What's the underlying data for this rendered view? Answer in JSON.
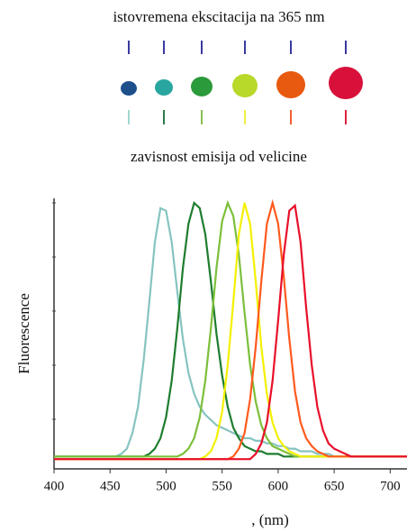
{
  "chart_data": {
    "type": "line",
    "title": "istovremena ekscitacija na 365 nm",
    "subtitle": "zavisnost emisija od velicine",
    "xlabel": ", (nm)",
    "ylabel": "Fluorescence",
    "xlim": [
      400,
      715
    ],
    "ylim": [
      0,
      100
    ],
    "xticks": [
      400,
      450,
      500,
      550,
      600,
      650,
      700
    ],
    "x": [
      400,
      405,
      410,
      415,
      420,
      425,
      430,
      435,
      440,
      445,
      450,
      455,
      460,
      465,
      470,
      475,
      480,
      485,
      490,
      495,
      500,
      505,
      510,
      515,
      520,
      525,
      530,
      535,
      540,
      545,
      550,
      555,
      560,
      565,
      570,
      575,
      580,
      585,
      590,
      595,
      600,
      605,
      610,
      615,
      620,
      625,
      630,
      635,
      640,
      645,
      650,
      655,
      660,
      665,
      670,
      675,
      680,
      685,
      690,
      695,
      700,
      705,
      710,
      715
    ],
    "series": [
      {
        "color": "#86c4c0",
        "values": [
          3,
          3,
          3,
          3,
          3,
          3,
          3,
          3,
          3,
          3,
          3,
          3,
          4,
          6,
          12,
          22,
          40,
          62,
          85,
          98,
          97,
          85,
          66,
          48,
          35,
          27,
          22,
          19,
          17,
          15,
          14,
          13,
          12,
          11,
          10,
          10,
          9,
          9,
          8,
          8,
          7,
          7,
          6,
          6,
          5,
          5,
          5,
          4,
          4,
          4,
          3,
          3,
          3,
          3,
          3,
          3,
          3,
          3,
          3,
          3,
          3,
          3,
          3,
          3
        ]
      },
      {
        "color": "#1e7d2e",
        "values": [
          3,
          3,
          3,
          3,
          3,
          3,
          3,
          3,
          3,
          3,
          3,
          3,
          3,
          3,
          3,
          3,
          3,
          4,
          6,
          10,
          18,
          32,
          52,
          75,
          92,
          100,
          98,
          88,
          70,
          50,
          34,
          22,
          14,
          10,
          7,
          6,
          5,
          5,
          4,
          4,
          4,
          3,
          3,
          3,
          3,
          3,
          3,
          3,
          3,
          3,
          3,
          3,
          3,
          3,
          3,
          3,
          3,
          3,
          3,
          3,
          3,
          3,
          3,
          3
        ]
      },
      {
        "color": "#7cbf3a",
        "values": [
          3,
          3,
          3,
          3,
          3,
          3,
          3,
          3,
          3,
          3,
          3,
          3,
          3,
          3,
          3,
          3,
          3,
          3,
          3,
          3,
          3,
          3,
          3,
          4,
          6,
          10,
          18,
          32,
          52,
          75,
          93,
          100,
          95,
          80,
          58,
          38,
          24,
          15,
          10,
          7,
          6,
          5,
          4,
          3,
          3,
          3,
          3,
          3,
          3,
          3,
          3,
          3,
          3,
          3,
          3,
          3,
          3,
          3,
          3,
          3,
          3,
          3,
          3,
          3
        ]
      },
      {
        "color": "#f4f000",
        "values": [
          2,
          2,
          2,
          2,
          2,
          2,
          2,
          2,
          2,
          2,
          2,
          2,
          2,
          2,
          2,
          2,
          2,
          2,
          2,
          2,
          2,
          2,
          2,
          2,
          2,
          2,
          2,
          3,
          5,
          10,
          20,
          38,
          62,
          88,
          100,
          92,
          70,
          45,
          27,
          16,
          10,
          7,
          5,
          4,
          3,
          3,
          3,
          3,
          3,
          3,
          3,
          3,
          3,
          3,
          3,
          3,
          3,
          3,
          3,
          3,
          3,
          3,
          3,
          3
        ]
      },
      {
        "color": "#ff5a1e",
        "values": [
          2,
          2,
          2,
          2,
          2,
          2,
          2,
          2,
          2,
          2,
          2,
          2,
          2,
          2,
          2,
          2,
          2,
          2,
          2,
          2,
          2,
          2,
          2,
          2,
          2,
          2,
          2,
          2,
          2,
          2,
          2,
          2,
          3,
          6,
          12,
          25,
          45,
          70,
          92,
          100,
          92,
          72,
          48,
          28,
          16,
          10,
          7,
          5,
          4,
          3,
          3,
          3,
          3,
          3,
          3,
          3,
          3,
          3,
          3,
          3,
          3,
          3,
          3,
          3
        ]
      },
      {
        "color": "#e8102a",
        "values": [
          2,
          2,
          2,
          2,
          2,
          2,
          2,
          2,
          2,
          2,
          2,
          2,
          2,
          2,
          2,
          2,
          2,
          2,
          2,
          2,
          2,
          2,
          2,
          2,
          2,
          2,
          2,
          2,
          2,
          2,
          2,
          2,
          2,
          2,
          2,
          2,
          4,
          8,
          16,
          32,
          55,
          80,
          97,
          99,
          85,
          60,
          38,
          22,
          13,
          8,
          6,
          5,
          4,
          3,
          3,
          3,
          3,
          3,
          3,
          3,
          3,
          3,
          3,
          3
        ]
      }
    ]
  }
}
